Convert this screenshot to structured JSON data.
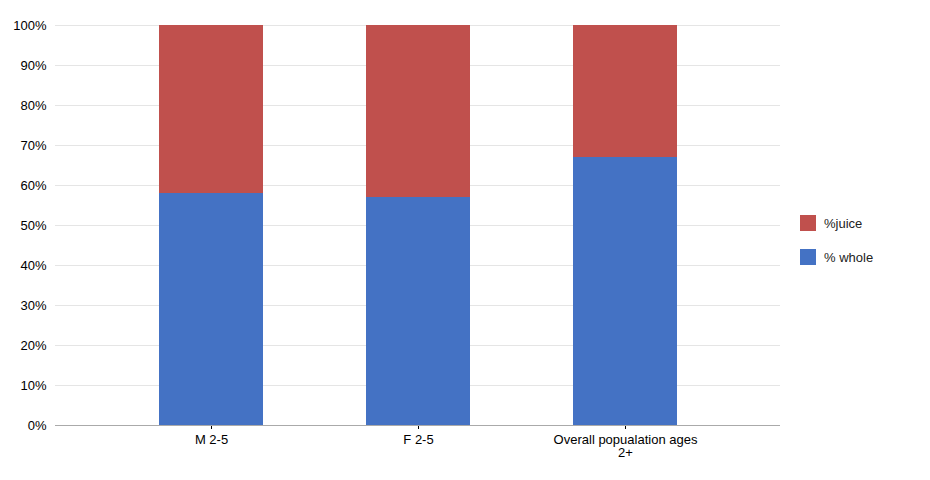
{
  "chart_data": {
    "type": "bar",
    "stacked": true,
    "categories": [
      "M 2-5",
      "F 2-5",
      "Overall popualation ages\n2+"
    ],
    "series": [
      {
        "name": "% whole",
        "color": "#4472C4",
        "values": [
          0.58,
          0.57,
          0.67
        ]
      },
      {
        "name": "%juice",
        "color": "#C0504D",
        "values": [
          0.42,
          0.43,
          0.33
        ]
      }
    ],
    "ylim": [
      0,
      1.0
    ],
    "yticks": [
      {
        "value": 0.0,
        "label": "0%"
      },
      {
        "value": 0.1,
        "label": "10%"
      },
      {
        "value": 0.2,
        "label": "20%"
      },
      {
        "value": 0.3,
        "label": "30%"
      },
      {
        "value": 0.4,
        "label": "40%"
      },
      {
        "value": 0.5,
        "label": "50%"
      },
      {
        "value": 0.6,
        "label": "60%"
      },
      {
        "value": 0.7,
        "label": "70%"
      },
      {
        "value": 0.8,
        "label": "80%"
      },
      {
        "value": 0.9,
        "label": "90%"
      },
      {
        "value": 1.0,
        "label": "100%"
      }
    ],
    "grid": true,
    "legend": "right"
  }
}
